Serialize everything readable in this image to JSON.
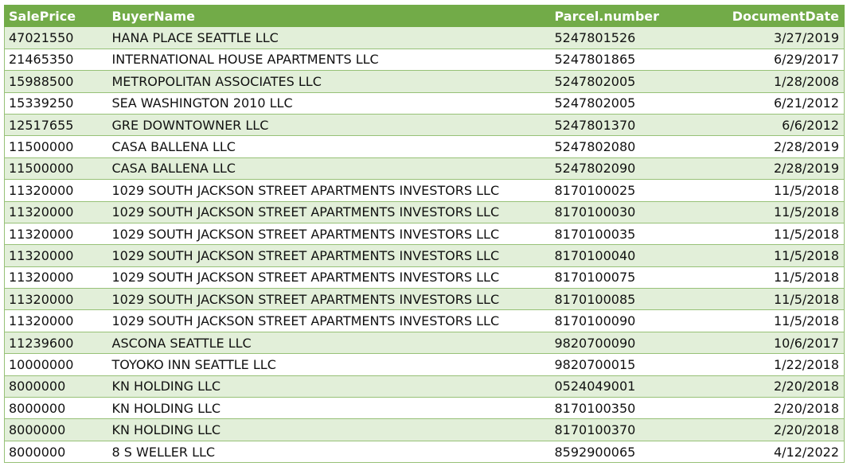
{
  "table": {
    "headers": [
      "SalePrice",
      "BuyerName",
      "Parcel.number",
      "DocumentDate"
    ],
    "rows": [
      [
        "47021550",
        "HANA PLACE SEATTLE LLC",
        "5247801526",
        "3/27/2019"
      ],
      [
        "21465350",
        "INTERNATIONAL HOUSE APARTMENTS LLC",
        "5247801865",
        "6/29/2017"
      ],
      [
        "15988500",
        "METROPOLITAN ASSOCIATES LLC",
        "5247802005",
        "1/28/2008"
      ],
      [
        "15339250",
        "SEA WASHINGTON 2010 LLC",
        "5247802005",
        "6/21/2012"
      ],
      [
        "12517655",
        "GRE DOWNTOWNER LLC",
        "5247801370",
        "6/6/2012"
      ],
      [
        "11500000",
        "CASA BALLENA LLC",
        "5247802080",
        "2/28/2019"
      ],
      [
        "11500000",
        "CASA BALLENA LLC",
        "5247802090",
        "2/28/2019"
      ],
      [
        "11320000",
        "1029 SOUTH JACKSON STREET APARTMENTS INVESTORS LLC",
        "8170100025",
        "11/5/2018"
      ],
      [
        "11320000",
        "1029 SOUTH JACKSON STREET APARTMENTS INVESTORS LLC",
        "8170100030",
        "11/5/2018"
      ],
      [
        "11320000",
        "1029 SOUTH JACKSON STREET APARTMENTS INVESTORS LLC",
        "8170100035",
        "11/5/2018"
      ],
      [
        "11320000",
        "1029 SOUTH JACKSON STREET APARTMENTS INVESTORS LLC",
        "8170100040",
        "11/5/2018"
      ],
      [
        "11320000",
        "1029 SOUTH JACKSON STREET APARTMENTS INVESTORS LLC",
        "8170100075",
        "11/5/2018"
      ],
      [
        "11320000",
        "1029 SOUTH JACKSON STREET APARTMENTS INVESTORS LLC",
        "8170100085",
        "11/5/2018"
      ],
      [
        "11320000",
        "1029 SOUTH JACKSON STREET APARTMENTS INVESTORS LLC",
        "8170100090",
        "11/5/2018"
      ],
      [
        "11239600",
        "ASCONA SEATTLE LLC",
        "9820700090",
        "10/6/2017"
      ],
      [
        "10000000",
        "TOYOKO INN SEATTLE LLC",
        "9820700015",
        "1/22/2018"
      ],
      [
        "8000000",
        "KN HOLDING LLC",
        "0524049001",
        "2/20/2018"
      ],
      [
        "8000000",
        "KN HOLDING LLC",
        "8170100350",
        "2/20/2018"
      ],
      [
        "8000000",
        "KN HOLDING LLC",
        "8170100370",
        "2/20/2018"
      ],
      [
        "8000000",
        "8 S WELLER LLC",
        "8592900065",
        "4/12/2022"
      ]
    ]
  },
  "colors": {
    "header_bg": "#72ab48",
    "band_bg": "#e2efd9",
    "border": "#97c177"
  }
}
